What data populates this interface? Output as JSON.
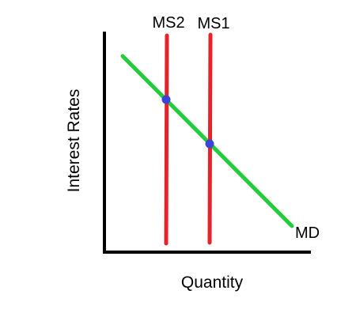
{
  "diagram": {
    "axes": {
      "x_label": "Quantity",
      "y_label": "Interest Rates"
    },
    "curves": {
      "md": {
        "label": "MD",
        "color": "#22cc3a"
      },
      "ms1": {
        "label": "MS1",
        "color": "#e6222a"
      },
      "ms2": {
        "label": "MS2",
        "color": "#e6222a"
      }
    },
    "point_color": "#3a45d8",
    "axis_color": "#000000"
  }
}
